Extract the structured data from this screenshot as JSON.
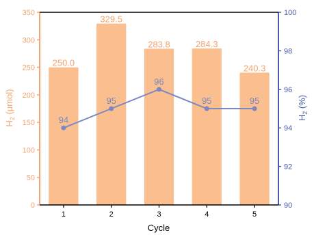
{
  "chart_data": {
    "type": "bar",
    "categories": [
      "1",
      "2",
      "3",
      "4",
      "5"
    ],
    "xlabel": "Cycle",
    "bars": {
      "ylabel_main": "H",
      "ylabel_sub": "2",
      "ylabel_unit": " (μmol)",
      "values": [
        250.0,
        329.5,
        283.8,
        284.3,
        240.3
      ],
      "value_labels": [
        "250.0",
        "329.5",
        "283.8",
        "284.3",
        "240.3"
      ],
      "ylim": [
        0,
        350
      ],
      "yticks": [
        "0",
        "50",
        "100",
        "150",
        "200",
        "250",
        "300",
        "350"
      ],
      "color": "#fbbf8f",
      "axis_color": "#f5a470"
    },
    "line": {
      "type": "line",
      "ylabel_main": "H",
      "ylabel_sub": "2",
      "ylabel_unit": " (%)",
      "values": [
        94,
        95,
        96,
        95,
        95
      ],
      "value_labels": [
        "94",
        "95",
        "96",
        "95",
        "95"
      ],
      "ylim": [
        90,
        100
      ],
      "yticks": [
        "90",
        "92",
        "94",
        "96",
        "98",
        "100"
      ],
      "color": "#7b88c4",
      "axis_color": "#4a5aa8"
    },
    "grid": false,
    "legend": "none"
  }
}
